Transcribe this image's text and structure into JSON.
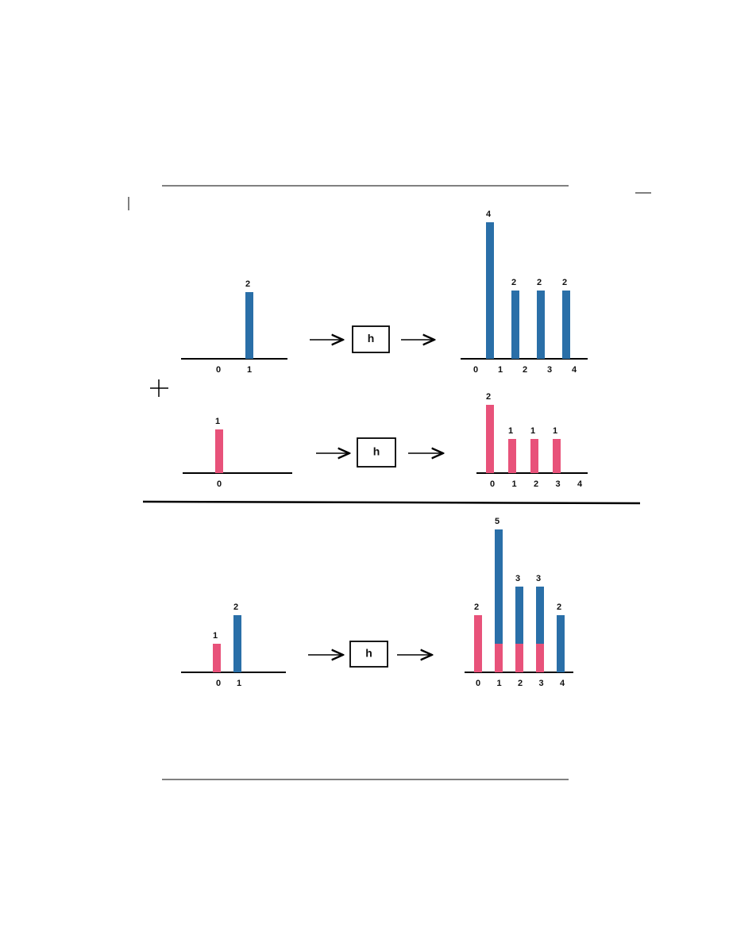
{
  "system_label": "h",
  "rows": [
    {
      "input": {
        "ticks": [
          0,
          1
        ],
        "stems": [
          {
            "x": 1,
            "value": 2,
            "color": "#2a6fa8"
          }
        ]
      },
      "output": {
        "ticks": [
          0,
          1,
          2,
          3,
          4
        ],
        "stems": [
          {
            "x": 1,
            "value": 4,
            "color": "#2a6fa8"
          },
          {
            "x": 2,
            "value": 2,
            "color": "#2a6fa8"
          },
          {
            "x": 3,
            "value": 2,
            "color": "#2a6fa8"
          },
          {
            "x": 4,
            "value": 2,
            "color": "#2a6fa8"
          }
        ]
      }
    },
    {
      "input": {
        "ticks": [
          0
        ],
        "stems": [
          {
            "x": 0,
            "value": 1,
            "color": "#e8527a"
          }
        ]
      },
      "output": {
        "ticks": [
          0,
          1,
          2,
          3,
          4
        ],
        "stems": [
          {
            "x": 0,
            "value": 2,
            "color": "#e8527a"
          },
          {
            "x": 1,
            "value": 1,
            "color": "#e8527a"
          },
          {
            "x": 2,
            "value": 1,
            "color": "#e8527a"
          },
          {
            "x": 3,
            "value": 1,
            "color": "#e8527a"
          }
        ]
      }
    },
    {
      "input": {
        "ticks": [
          0,
          1
        ],
        "stems": [
          {
            "x": 0,
            "value": 1,
            "color": "#e8527a"
          },
          {
            "x": 1,
            "value": 2,
            "color": "#2a6fa8"
          }
        ]
      },
      "output": {
        "ticks": [
          0,
          1,
          2,
          3,
          4
        ],
        "series": [
          {
            "color": "#e8527a",
            "values": [
              2,
              1,
              1,
              1,
              null
            ]
          },
          {
            "color": "#2a6fa8",
            "values": [
              null,
              4,
              2,
              2,
              2
            ]
          }
        ],
        "totals": [
          2,
          5,
          3,
          3,
          2
        ]
      }
    }
  ]
}
